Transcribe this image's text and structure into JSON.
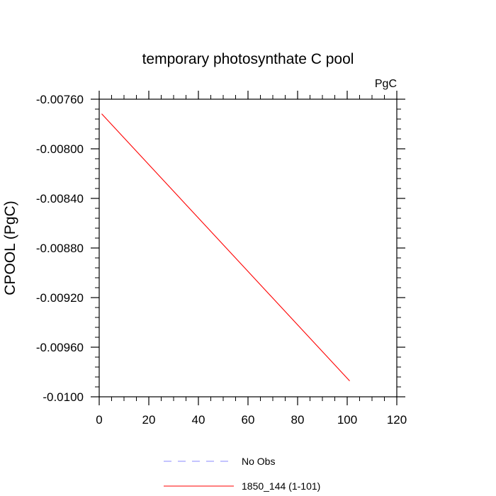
{
  "chart_data": {
    "type": "line",
    "title": "temporary photosynthate C pool",
    "units_label": "PgC",
    "xlabel": "",
    "ylabel": "CPOOL  (PgC)",
    "xlim": [
      0,
      120
    ],
    "ylim": [
      -0.01,
      -0.0076
    ],
    "x_ticks": [
      0,
      20,
      40,
      60,
      80,
      100,
      120
    ],
    "x_tick_labels": [
      "0",
      "20",
      "40",
      "60",
      "80",
      "100",
      "120"
    ],
    "y_ticks": [
      -0.0076,
      -0.008,
      -0.0084,
      -0.0088,
      -0.0092,
      -0.0096,
      -0.01
    ],
    "y_tick_labels": [
      "-0.00760",
      "-0.00800",
      "-0.00840",
      "-0.00880",
      "-0.00920",
      "-0.00960",
      "-0.0100"
    ],
    "grid": false,
    "legend_position": "bottom",
    "series": [
      {
        "name": "No Obs",
        "color": "#8888ff",
        "dash": "dashed",
        "x": [],
        "y": []
      },
      {
        "name": "1850_144 (1-101)",
        "color": "#ff0000",
        "dash": "solid",
        "x": [
          1,
          101
        ],
        "y": [
          -0.007718,
          -0.009872
        ]
      }
    ]
  }
}
